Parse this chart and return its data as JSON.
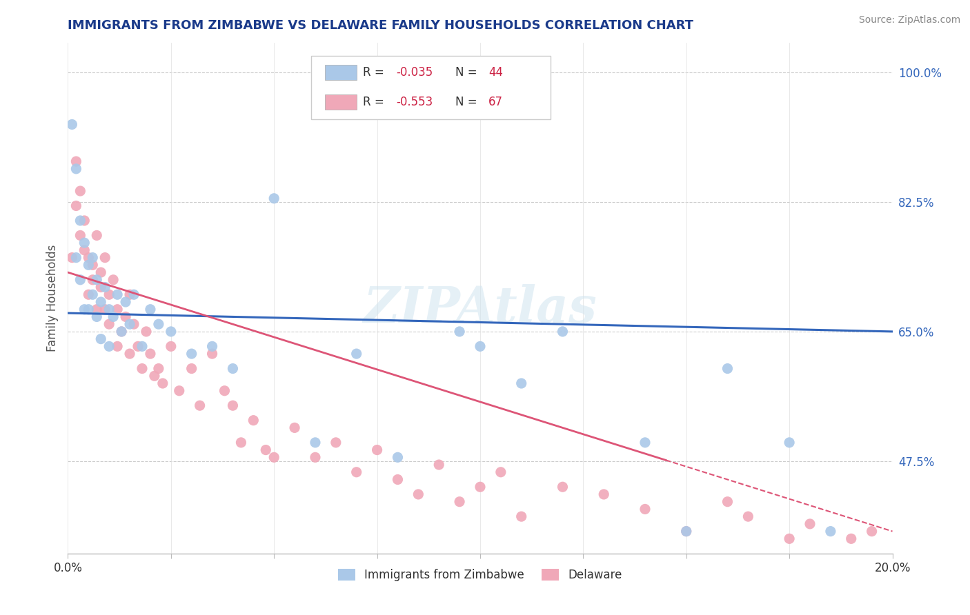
{
  "title": "IMMIGRANTS FROM ZIMBABWE VS DELAWARE FAMILY HOUSEHOLDS CORRELATION CHART",
  "source": "Source: ZipAtlas.com",
  "ylabel": "Family Households",
  "x_min": 0.0,
  "x_max": 0.2,
  "y_min": 0.35,
  "y_max": 1.04,
  "yticks": [
    0.475,
    0.65,
    0.825,
    1.0
  ],
  "ytick_labels": [
    "47.5%",
    "65.0%",
    "82.5%",
    "100.0%"
  ],
  "xticks": [
    0.0,
    0.025,
    0.05,
    0.075,
    0.1,
    0.125,
    0.15,
    0.175,
    0.2
  ],
  "xtick_labels": [
    "0.0%",
    "",
    "",
    "",
    "",
    "",
    "",
    "",
    "20.0%"
  ],
  "series1_label": "Immigrants from Zimbabwe",
  "series1_R": -0.035,
  "series1_N": 44,
  "series1_color": "#aac8e8",
  "series1_line_color": "#3366bb",
  "series2_label": "Delaware",
  "series2_R": -0.553,
  "series2_N": 67,
  "series2_color": "#f0a8b8",
  "series2_line_color": "#dd5577",
  "watermark_text": "ZIPAtlas",
  "background_color": "#ffffff",
  "grid_color": "#cccccc",
  "title_color": "#1a3a8a",
  "series1_x": [
    0.001,
    0.002,
    0.002,
    0.003,
    0.003,
    0.004,
    0.004,
    0.005,
    0.005,
    0.006,
    0.006,
    0.007,
    0.007,
    0.008,
    0.008,
    0.009,
    0.01,
    0.01,
    0.011,
    0.012,
    0.013,
    0.014,
    0.015,
    0.016,
    0.018,
    0.02,
    0.022,
    0.025,
    0.03,
    0.035,
    0.04,
    0.05,
    0.06,
    0.07,
    0.08,
    0.095,
    0.1,
    0.11,
    0.12,
    0.14,
    0.15,
    0.16,
    0.175,
    0.185
  ],
  "series1_y": [
    0.93,
    0.87,
    0.75,
    0.8,
    0.72,
    0.77,
    0.68,
    0.74,
    0.68,
    0.75,
    0.7,
    0.72,
    0.67,
    0.69,
    0.64,
    0.71,
    0.68,
    0.63,
    0.67,
    0.7,
    0.65,
    0.69,
    0.66,
    0.7,
    0.63,
    0.68,
    0.66,
    0.65,
    0.62,
    0.63,
    0.6,
    0.83,
    0.5,
    0.62,
    0.48,
    0.65,
    0.63,
    0.58,
    0.65,
    0.5,
    0.38,
    0.6,
    0.5,
    0.38
  ],
  "series2_x": [
    0.001,
    0.002,
    0.002,
    0.003,
    0.003,
    0.004,
    0.004,
    0.005,
    0.005,
    0.006,
    0.006,
    0.007,
    0.007,
    0.008,
    0.008,
    0.009,
    0.009,
    0.01,
    0.01,
    0.011,
    0.012,
    0.012,
    0.013,
    0.014,
    0.015,
    0.015,
    0.016,
    0.017,
    0.018,
    0.019,
    0.02,
    0.021,
    0.022,
    0.023,
    0.025,
    0.027,
    0.03,
    0.032,
    0.035,
    0.038,
    0.04,
    0.042,
    0.045,
    0.048,
    0.05,
    0.055,
    0.06,
    0.065,
    0.07,
    0.075,
    0.08,
    0.085,
    0.09,
    0.095,
    0.1,
    0.105,
    0.11,
    0.12,
    0.13,
    0.14,
    0.15,
    0.16,
    0.165,
    0.175,
    0.18,
    0.19,
    0.195
  ],
  "series2_y": [
    0.75,
    0.82,
    0.88,
    0.78,
    0.84,
    0.8,
    0.76,
    0.75,
    0.7,
    0.74,
    0.72,
    0.78,
    0.68,
    0.73,
    0.71,
    0.75,
    0.68,
    0.7,
    0.66,
    0.72,
    0.68,
    0.63,
    0.65,
    0.67,
    0.7,
    0.62,
    0.66,
    0.63,
    0.6,
    0.65,
    0.62,
    0.59,
    0.6,
    0.58,
    0.63,
    0.57,
    0.6,
    0.55,
    0.62,
    0.57,
    0.55,
    0.5,
    0.53,
    0.49,
    0.48,
    0.52,
    0.48,
    0.5,
    0.46,
    0.49,
    0.45,
    0.43,
    0.47,
    0.42,
    0.44,
    0.46,
    0.4,
    0.44,
    0.43,
    0.41,
    0.38,
    0.42,
    0.4,
    0.37,
    0.39,
    0.37,
    0.38
  ],
  "trend1_x0": 0.0,
  "trend1_y0": 0.675,
  "trend1_x1": 0.2,
  "trend1_y1": 0.65,
  "trend2_x0": 0.0,
  "trend2_y0": 0.73,
  "trend2_x1": 0.2,
  "trend2_y1": 0.38
}
